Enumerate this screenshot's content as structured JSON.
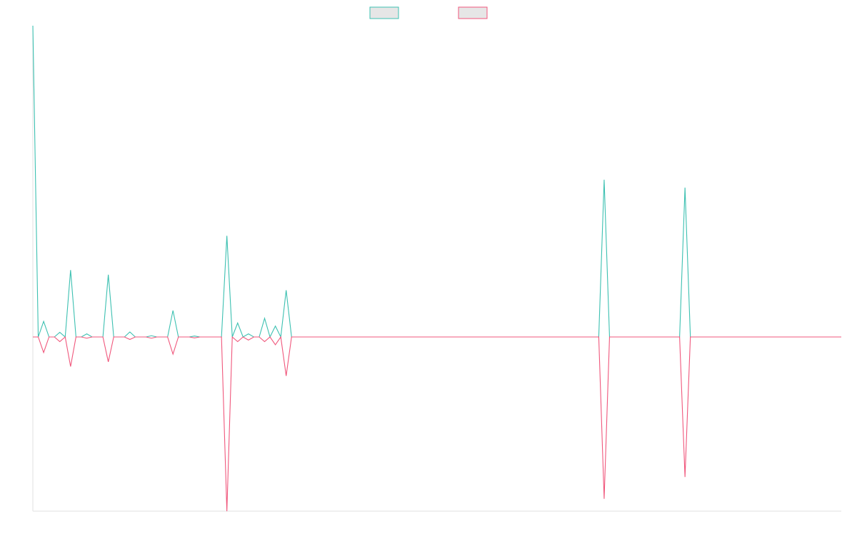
{
  "chart_data": {
    "type": "line",
    "title": "",
    "xlabel": "",
    "ylabel": "",
    "legend_position": "top-center",
    "grid": false,
    "ylim": [
      -1,
      1
    ],
    "x": [
      1,
      2,
      3,
      4,
      5,
      6,
      7,
      8,
      9,
      10,
      11,
      12,
      13,
      14,
      15,
      16,
      17,
      18,
      19,
      20,
      21,
      22,
      23,
      24,
      25,
      26,
      27,
      28,
      29,
      30,
      31,
      32,
      33,
      34,
      35,
      36,
      37,
      38,
      39,
      40,
      41,
      42,
      43,
      44,
      45,
      46,
      47,
      48,
      49,
      50,
      51,
      52,
      53,
      54,
      55,
      56,
      57,
      58,
      59,
      60,
      61,
      62,
      63,
      64,
      65,
      66,
      67,
      68,
      69,
      70,
      71,
      72,
      73,
      74,
      75,
      76,
      77,
      78,
      79,
      80,
      81,
      82,
      83,
      84,
      85,
      86,
      87,
      88,
      89,
      90,
      91,
      92,
      93,
      94,
      95,
      96,
      97,
      98,
      99,
      100,
      101,
      102,
      103,
      104,
      105,
      106,
      107,
      108,
      109,
      110,
      111,
      112,
      113,
      114,
      115,
      116,
      117,
      118,
      119,
      120,
      121,
      122,
      123,
      124,
      125,
      126,
      127,
      128,
      129,
      130,
      131,
      132,
      133,
      134,
      135,
      136,
      137,
      138,
      139,
      140,
      141,
      142,
      143,
      144,
      145,
      146,
      147,
      148,
      149,
      150,
      151
    ],
    "series": [
      {
        "color": "#3cc0b1",
        "values": [
          1.0,
          0,
          0.05,
          0,
          0,
          0.015,
          0,
          0.215,
          0,
          0,
          0.01,
          0,
          0,
          0,
          0.2,
          0,
          0,
          0,
          0.016,
          0,
          0,
          0,
          0.004,
          0,
          0,
          0,
          0.085,
          0,
          0,
          0,
          0.003,
          0,
          0,
          0,
          0,
          0,
          0.325,
          0,
          0.045,
          0,
          0.01,
          0,
          0,
          0.06,
          0,
          0.035,
          0,
          0.15,
          0,
          0,
          0,
          0,
          0,
          0,
          0,
          0,
          0,
          0,
          0,
          0,
          0,
          0,
          0,
          0,
          0,
          0,
          0,
          0,
          0,
          0,
          0,
          0,
          0,
          0,
          0,
          0,
          0,
          0,
          0,
          0,
          0,
          0,
          0,
          0,
          0,
          0,
          0,
          0,
          0,
          0,
          0,
          0,
          0,
          0,
          0,
          0,
          0,
          0,
          0,
          0,
          0,
          0,
          0,
          0,
          0,
          0,
          0.505,
          0,
          0,
          0,
          0,
          0,
          0,
          0,
          0,
          0,
          0,
          0,
          0,
          0,
          0,
          0.48,
          0,
          0,
          0,
          0,
          0,
          0,
          0,
          0,
          0,
          0,
          0,
          0,
          0,
          0,
          0,
          0,
          0,
          0,
          0,
          0,
          0,
          0,
          0,
          0,
          0,
          0,
          0,
          0,
          0
        ]
      },
      {
        "color": "#f0577c",
        "values": [
          0,
          0,
          -0.05,
          0,
          0,
          -0.015,
          0,
          -0.095,
          0,
          0,
          -0.004,
          0,
          0,
          0,
          -0.08,
          0,
          0,
          0,
          -0.008,
          0,
          0,
          0,
          -0.004,
          0,
          0,
          0,
          -0.055,
          0,
          0,
          0,
          -0.003,
          0,
          0,
          0,
          0,
          0,
          -0.56,
          0,
          -0.015,
          0,
          -0.01,
          0,
          0,
          -0.015,
          0,
          -0.025,
          0,
          -0.125,
          0,
          0,
          0,
          0,
          0,
          0,
          0,
          0,
          0,
          0,
          0,
          0,
          0,
          0,
          0,
          0,
          0,
          0,
          0,
          0,
          0,
          0,
          0,
          0,
          0,
          0,
          0,
          0,
          0,
          0,
          0,
          0,
          0,
          0,
          0,
          0,
          0,
          0,
          0,
          0,
          0,
          0,
          0,
          0,
          0,
          0,
          0,
          0,
          0,
          0,
          0,
          0,
          0,
          0,
          0,
          0,
          0,
          0,
          -0.52,
          0,
          0,
          0,
          0,
          0,
          0,
          0,
          0,
          0,
          0,
          0,
          0,
          0,
          0,
          -0.45,
          0,
          0,
          0,
          0,
          0,
          0,
          0,
          0,
          0,
          0,
          0,
          0,
          0,
          0,
          0,
          0,
          0,
          0,
          0,
          0,
          0,
          0,
          0,
          0,
          0,
          0,
          0,
          0,
          0
        ]
      }
    ]
  }
}
